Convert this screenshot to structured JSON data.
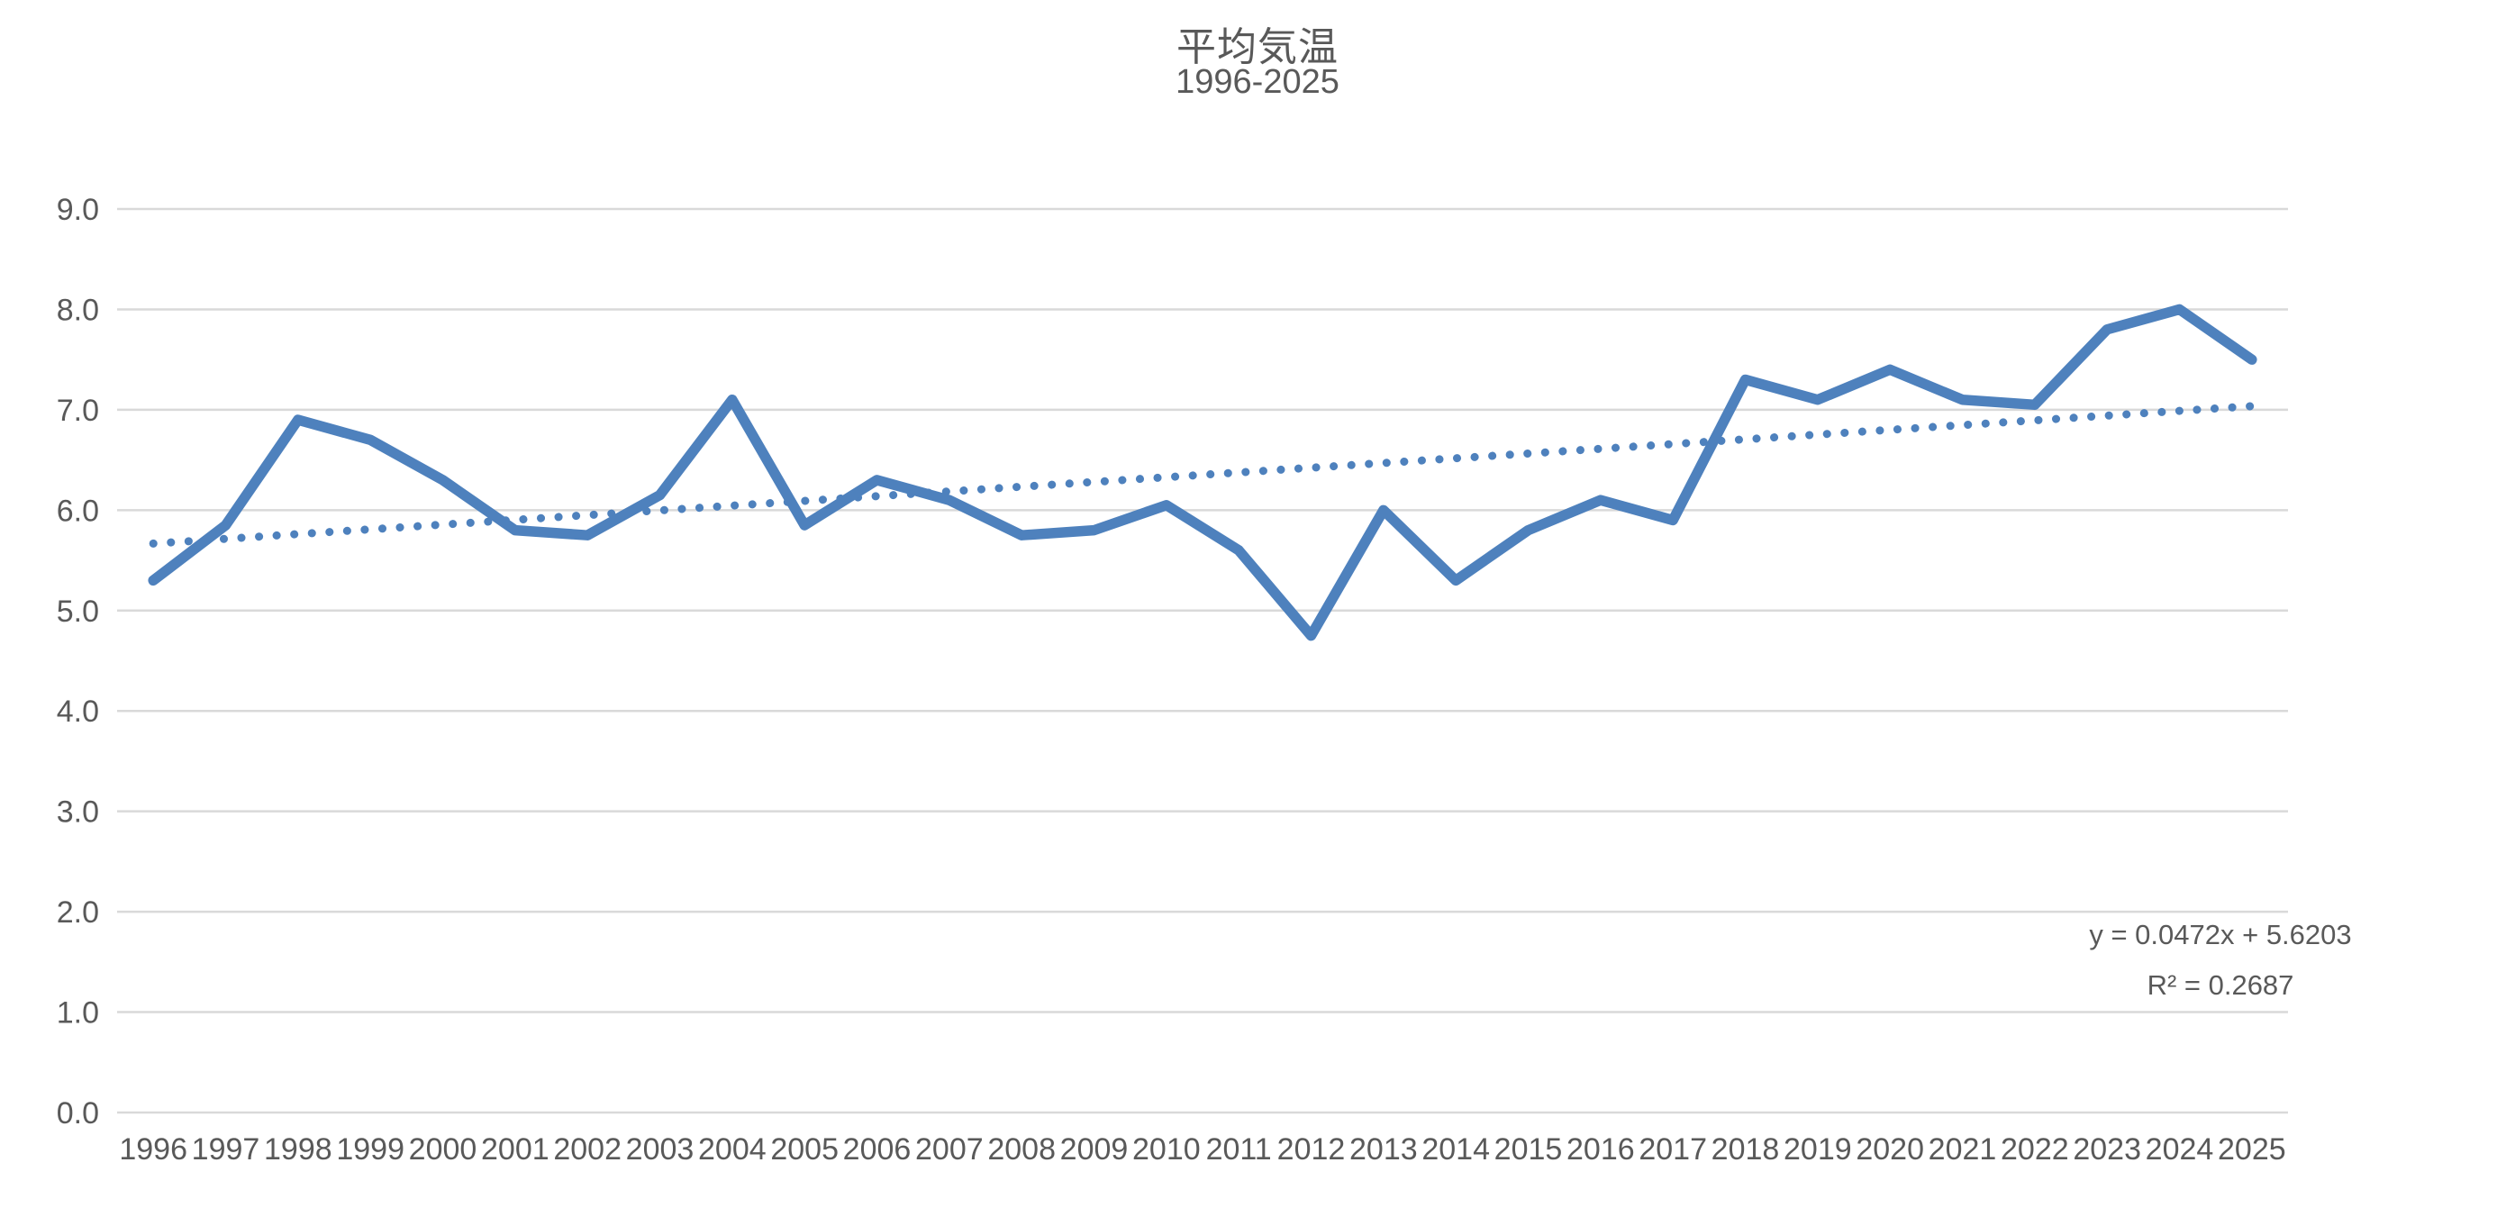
{
  "chart_data": {
    "type": "line",
    "title": "平均気温",
    "subtitle": "1996-2025",
    "categories": [
      "1996",
      "1997",
      "1998",
      "1999",
      "2000",
      "2001",
      "2002",
      "2003",
      "2004",
      "2005",
      "2006",
      "2007",
      "2008",
      "2009",
      "2010",
      "2011",
      "2012",
      "2013",
      "2014",
      "2015",
      "2016",
      "2017",
      "2018",
      "2019",
      "2020",
      "2021",
      "2022",
      "2023",
      "2024",
      "2025"
    ],
    "series": [
      {
        "name": "平均気温",
        "values": [
          5.3,
          5.85,
          6.9,
          6.7,
          6.3,
          5.8,
          5.75,
          6.15,
          7.1,
          5.85,
          6.3,
          6.1,
          5.75,
          5.8,
          6.05,
          5.6,
          4.75,
          6.0,
          5.3,
          5.8,
          6.1,
          5.9,
          7.3,
          7.1,
          7.4,
          7.1,
          7.05,
          7.8,
          8.0,
          7.5
        ]
      }
    ],
    "ylim": [
      0.0,
      9.0
    ],
    "ytick_step": 1.0,
    "ytick_labels": [
      "0.0",
      "1.0",
      "2.0",
      "3.0",
      "4.0",
      "5.0",
      "6.0",
      "7.0",
      "8.0",
      "9.0"
    ],
    "xlabel": "",
    "ylabel": "",
    "grid": "horizontal",
    "legend_position": "none",
    "trendline": {
      "type": "linear",
      "slope": 0.0472,
      "intercept": 5.6203,
      "r2": 0.2687,
      "equation_label": "y = 0.0472x + 5.6203",
      "r2_label": "R² = 0.2687",
      "style": "dotted"
    },
    "colors": {
      "series": "#4e81bd",
      "trendline": "#4e81bd",
      "gridline": "#d9d9d9",
      "text": "#595959"
    }
  }
}
